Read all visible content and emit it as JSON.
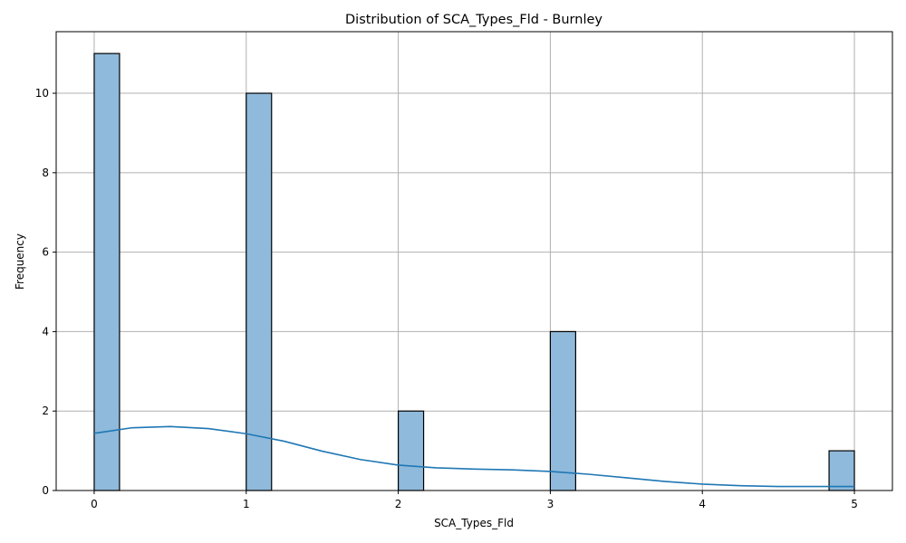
{
  "chart_data": {
    "type": "bar",
    "subtype": "histogram-with-kde",
    "title": "Distribution of SCA_Types_Fld - Burnley",
    "xlabel": "SCA_Types_Fld",
    "ylabel": "Frequency",
    "xlim": [
      -0.25,
      5.25
    ],
    "ylim": [
      0,
      11.55
    ],
    "xticks": [
      0,
      1,
      2,
      3,
      4,
      5
    ],
    "yticks": [
      0,
      2,
      4,
      6,
      8,
      10
    ],
    "grid": true,
    "bins": [
      {
        "x0": 0.0,
        "x1": 0.1667,
        "count": 11
      },
      {
        "x0": 1.0,
        "x1": 1.1667,
        "count": 10
      },
      {
        "x0": 2.0,
        "x1": 2.1667,
        "count": 2
      },
      {
        "x0": 3.0,
        "x1": 3.1667,
        "count": 4
      },
      {
        "x0": 4.8333,
        "x1": 5.0,
        "count": 1
      }
    ],
    "kde": {
      "x": [
        0.0,
        0.25,
        0.5,
        0.75,
        1.0,
        1.25,
        1.5,
        1.75,
        2.0,
        2.25,
        2.5,
        2.75,
        3.0,
        3.25,
        3.5,
        3.75,
        4.0,
        4.25,
        4.5,
        4.75,
        5.0
      ],
      "y": [
        1.44,
        1.58,
        1.61,
        1.56,
        1.43,
        1.24,
        0.99,
        0.78,
        0.64,
        0.57,
        0.54,
        0.52,
        0.48,
        0.41,
        0.32,
        0.23,
        0.16,
        0.12,
        0.1,
        0.1,
        0.1
      ]
    },
    "colors": {
      "bar_fill": "#8fbadb",
      "bar_edge": "#000000",
      "kde_line": "#1f77b4",
      "grid": "#b0b0b0"
    }
  }
}
